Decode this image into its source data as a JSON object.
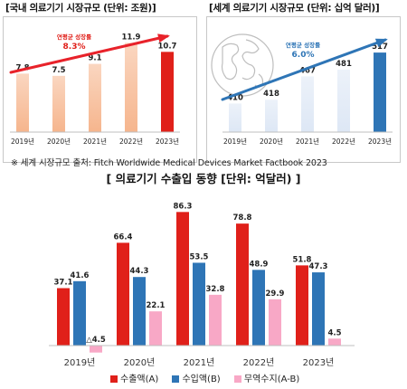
{
  "chart_data": [
    {
      "type": "bar",
      "title": "[국내 의료기기 시장규모 (단위: 조원)]",
      "categories": [
        "2019년",
        "2020년",
        "2021년",
        "2022년",
        "2023년"
      ],
      "values": [
        7.8,
        7.5,
        9.1,
        11.9,
        10.7
      ],
      "value_labels": [
        "7.8",
        "7.5",
        "9.1",
        "11.9",
        "10.7"
      ],
      "annotation": "연평균 성장률",
      "annotation_value": "8.3%",
      "colors": {
        "bar": "#f6b58d",
        "highlight": "#e0201a",
        "arrow": "#e8222a",
        "annotation": "#e0201a"
      },
      "ylim": [
        0,
        14
      ],
      "grid": false,
      "legend": "none"
    },
    {
      "type": "bar",
      "title": "[세계 의료기기 시장규모 (단위: 십억 달러)]",
      "categories": [
        "2019년",
        "2020년",
        "2021년",
        "2022년",
        "2023년"
      ],
      "values": [
        410,
        418,
        467,
        481,
        517
      ],
      "value_labels": [
        "410",
        "418",
        "467",
        "481",
        "517"
      ],
      "annotation": "연평균 성장률",
      "annotation_value": "6.0%",
      "colors": {
        "bar": "#dde7f5",
        "highlight": "#2e75b6",
        "arrow": "#2e75b6",
        "annotation": "#2e75b6"
      },
      "ylim": [
        350,
        540
      ],
      "grid": false,
      "legend": "none"
    },
    {
      "type": "bar",
      "title": "[ 의료기기 수출입 동향 [단위: 억달러) ]",
      "categories": [
        "2019년",
        "2020년",
        "2021년",
        "2022년",
        "2023년"
      ],
      "series": [
        {
          "name": "수출액(A)",
          "color": "#e0201a",
          "values": [
            37.1,
            66.4,
            86.3,
            78.8,
            51.8
          ],
          "labels": [
            "37.1",
            "66.4",
            "86.3",
            "78.8",
            "51.8"
          ]
        },
        {
          "name": "수입액(B)",
          "color": "#2e75b6",
          "values": [
            41.6,
            44.3,
            53.5,
            48.9,
            47.3
          ],
          "labels": [
            "41.6",
            "44.3",
            "53.5",
            "48.9",
            "47.3"
          ]
        },
        {
          "name": "무역수지(A-B)",
          "color": "#f8a8c6",
          "values": [
            -4.5,
            22.1,
            32.8,
            29.9,
            4.5
          ],
          "labels": [
            "△4.5",
            "22.1",
            "32.8",
            "29.9",
            "4.5"
          ]
        }
      ],
      "ylim": [
        -6,
        90
      ],
      "grid": false,
      "legend": "bottom"
    }
  ],
  "source_note": "※ 세계 시장규모 출처: Fitch Worldwide Medical Devices Market Factbook 2023"
}
